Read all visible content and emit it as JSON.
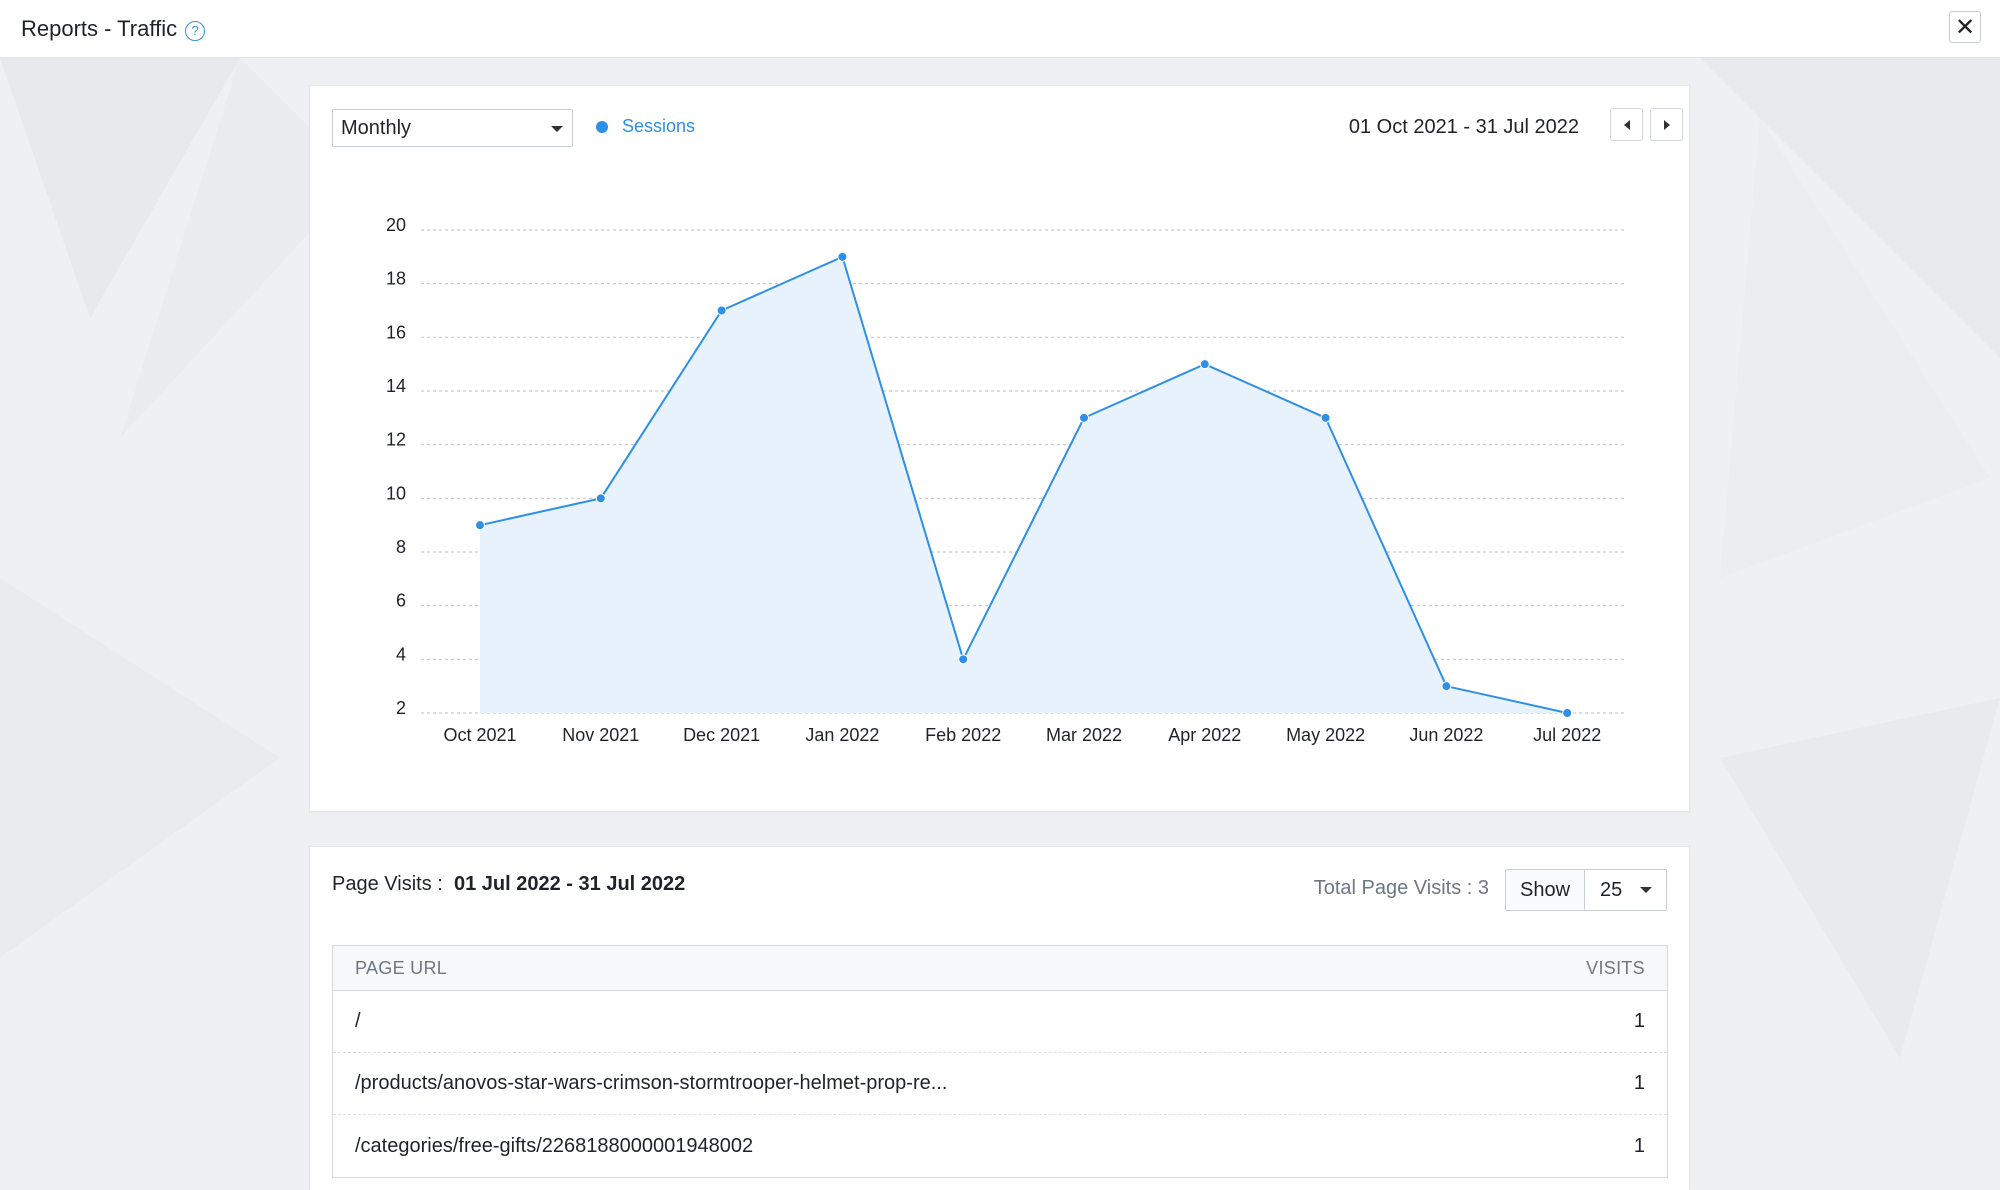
{
  "header": {
    "title": "Reports - Traffic",
    "help_icon": "?",
    "close_icon": "✕"
  },
  "chart_panel": {
    "period_select": "Monthly",
    "legend_label": "Sessions",
    "date_range": "01 Oct 2021 - 31 Jul 2022"
  },
  "colors": {
    "accent": "#2e8fe6",
    "area_fill": "#e8f2fc",
    "grid": "#c5c9ce"
  },
  "chart_data": {
    "type": "area",
    "categories": [
      "Oct 2021",
      "Nov 2021",
      "Dec 2021",
      "Jan 2022",
      "Feb 2022",
      "Mar 2022",
      "Apr 2022",
      "May 2022",
      "Jun 2022",
      "Jul 2022"
    ],
    "series": [
      {
        "name": "Sessions",
        "values": [
          9,
          10,
          17,
          19,
          4,
          13,
          15,
          13,
          3,
          2
        ]
      }
    ],
    "yticks": [
      2,
      4,
      6,
      8,
      10,
      12,
      14,
      16,
      18,
      20
    ],
    "ylim": [
      2,
      20
    ],
    "grid": true,
    "legend_position": "top-left"
  },
  "page_visits": {
    "label": "Page Visits :",
    "range": "01 Jul 2022 - 31 Jul 2022",
    "total": "Total Page Visits : 3",
    "show_label": "Show",
    "show_value": "25",
    "columns": {
      "url": "PAGE URL",
      "visits": "VISITS"
    },
    "rows": [
      {
        "url": "/",
        "visits": "1"
      },
      {
        "url": "/products/anovos-star-wars-crimson-stormtrooper-helmet-prop-re...",
        "visits": "1"
      },
      {
        "url": "/categories/free-gifts/2268188000001948002",
        "visits": "1"
      }
    ]
  }
}
